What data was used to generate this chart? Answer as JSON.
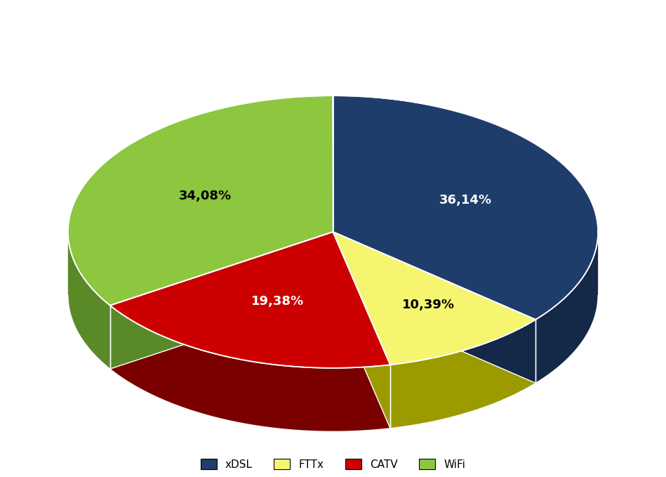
{
  "labels": [
    "xDSL",
    "FTTx",
    "CATV",
    "WiFi"
  ],
  "values": [
    36.14,
    10.39,
    19.38,
    34.08
  ],
  "display_labels": [
    "36,14%",
    "10,39%",
    "19,38%",
    "34,08%"
  ],
  "colors_top": [
    "#1F3D6B",
    "#F5F570",
    "#CC0000",
    "#8DC63F"
  ],
  "colors_side": [
    "#142848",
    "#9B9B00",
    "#7A0000",
    "#5A8A28"
  ],
  "text_colors": [
    "white",
    "black",
    "white",
    "black"
  ],
  "legend_colors": [
    "#1F3D6B",
    "#F5F570",
    "#CC0000",
    "#8DC63F"
  ],
  "background_color": "#FFFFFF",
  "label_fontsize": 13,
  "legend_fontsize": 11,
  "figsize": [
    9.49,
    6.79
  ]
}
